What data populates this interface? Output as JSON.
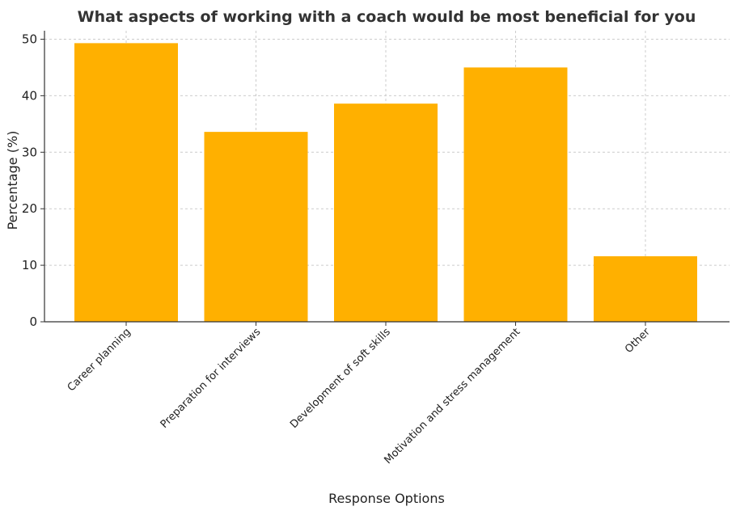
{
  "chart_data": {
    "type": "bar",
    "title": "What aspects of working with a coach would be most beneficial for you",
    "xlabel": "Response Options",
    "ylabel": "Percentage (%)",
    "categories": [
      "Career planning",
      "Preparation for interviews",
      "Development of soft skills",
      "Motivation and stress management",
      "Other"
    ],
    "values": [
      49.3,
      33.6,
      38.6,
      45.0,
      11.6
    ],
    "ylim": [
      0,
      51.5
    ],
    "yticks": [
      0,
      10,
      20,
      30,
      40,
      50
    ],
    "grid": true,
    "bar_color": "#FFB000"
  }
}
